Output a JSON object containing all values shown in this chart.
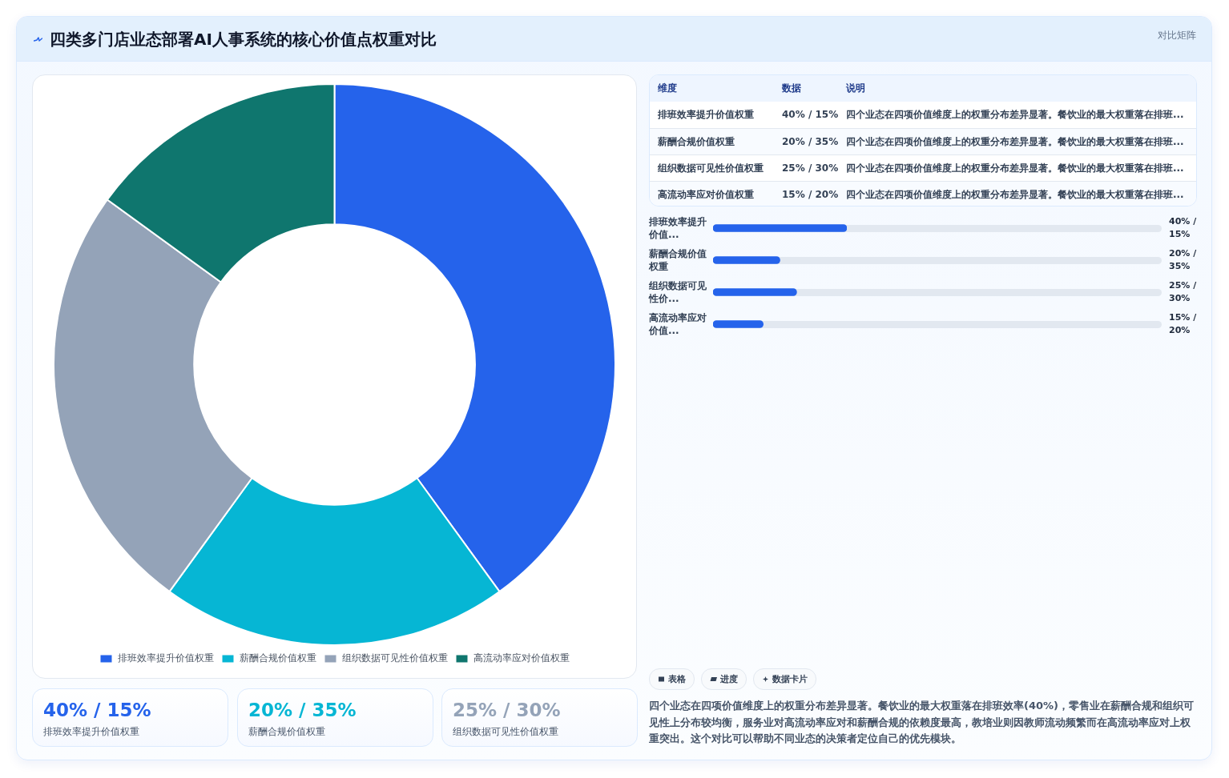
{
  "chart_data": [
    {
      "type": "donut",
      "title": "四类多门店业态部署AI人事系统的核心价值点权重对比",
      "annotations": [
        "对比矩阵"
      ],
      "categories": [
        "排班效率提升价值权重",
        "薪酬合规价值权重",
        "组织数据可见性价值权重",
        "高流动率应对价值权重"
      ],
      "values": [
        40,
        20,
        25,
        15
      ],
      "colors": [
        "#2563eb",
        "#06b6d4",
        "#94a3b8",
        "#0f766e"
      ],
      "legend": "bottom"
    },
    {
      "type": "other",
      "categories": [
        "排班效率提升价值权重",
        "薪酬合规价值权重",
        "组织数据可见性价值权重"
      ],
      "value_labels": [
        "40% / 15%",
        "20% / 35%",
        "25% / 30%"
      ]
    },
    {
      "type": "other",
      "categories": [
        "维度",
        "数据",
        "说明"
      ],
      "annotations": [
        "排班效率提升价值权重",
        "40% / 15%",
        "四个业态在四项价值维度上的权重分布差异显著。餐饮业的最大权重落在排班...",
        "薪酬合规价值权重",
        "20% / 35%",
        "四个业态在四项价值维度上的权重分布差异显著。餐饮业的最大权重落在排班...",
        "组织数据可见性价值权重",
        "25% / 30%",
        "四个业态在四项价值维度上的权重分布差异显著。餐饮业的最大权重落在排班...",
        "高流动率应对价值权重",
        "15% / 20%",
        "四个业态在四项价值维度上的权重分布差异显著。餐饮业的最大权重落在排班..."
      ]
    },
    {
      "type": "bar",
      "orientation": "horizontal",
      "categories": [
        "排班效率提升价值...",
        "薪酬合规价值权重",
        "组织数据可见性价...",
        "高流动率应对价值..."
      ],
      "values": [
        40,
        20,
        25,
        15
      ],
      "value_labels": [
        "40% / 15%",
        "20% / 35%",
        "25% / 30%",
        "15% / 20%"
      ],
      "color": "#2563eb"
    },
    {
      "type": "other",
      "annotations": [
        "表格",
        "进度",
        "数据卡片",
        "四个业态在四项价值维度上的权重分布差异显著。餐饮业的最大权重落在排班效率(40%)，零售业在薪酬合规和组织可见性上分布较均衡，服务业对高流动率应对和薪酬合规的依赖度最高，教培业则因教师流动频繁而在高流动率应对上权重突出。这个对比可以帮助不同业态的决策者定位自己的优先模块。"
      ]
    }
  ]
}
